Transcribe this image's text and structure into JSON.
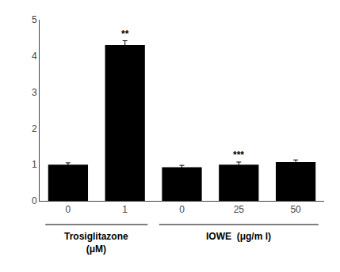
{
  "chart_data": {
    "type": "bar",
    "categories": [
      "0",
      "1",
      "0",
      "25",
      "50"
    ],
    "values": [
      1.0,
      4.3,
      0.93,
      1.0,
      1.07
    ],
    "errors": [
      0.05,
      0.12,
      0.05,
      0.07,
      0.06
    ],
    "color": "#000000",
    "ylim": [
      0,
      5
    ],
    "yticks": [
      0,
      1,
      2,
      3,
      4,
      5
    ],
    "grid": false,
    "group_labels": [
      {
        "text": [
          "Trosiglitazone",
          "(μM)"
        ],
        "from": 0,
        "to": 1
      },
      {
        "text": [
          "IOWE  (μg/m l)"
        ],
        "from": 2,
        "to": 4
      }
    ],
    "annotations": [
      {
        "text": "**",
        "x": 1
      },
      {
        "text": "***",
        "x": 3
      }
    ]
  }
}
